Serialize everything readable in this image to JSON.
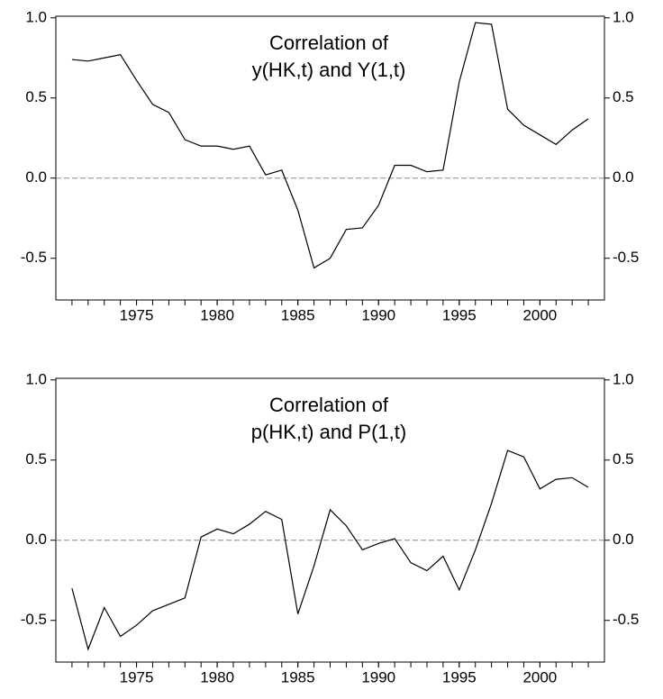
{
  "chart_data": [
    {
      "type": "line",
      "title": [
        "Correlation of",
        "y(HK,t) and Y(1,t)"
      ],
      "x": [
        1971,
        1972,
        1973,
        1974,
        1975,
        1976,
        1977,
        1978,
        1979,
        1980,
        1981,
        1982,
        1983,
        1984,
        1985,
        1986,
        1987,
        1988,
        1989,
        1990,
        1991,
        1992,
        1993,
        1994,
        1995,
        1996,
        1997,
        1998,
        1999,
        2000,
        2001,
        2002,
        2003
      ],
      "values": [
        0.74,
        0.73,
        0.75,
        0.77,
        0.61,
        0.46,
        0.41,
        0.24,
        0.2,
        0.2,
        0.18,
        0.2,
        0.02,
        0.05,
        -0.2,
        -0.56,
        -0.5,
        -0.32,
        -0.31,
        -0.17,
        0.08,
        0.08,
        0.04,
        0.05,
        0.6,
        0.97,
        0.96,
        0.43,
        0.33,
        0.27,
        0.21,
        0.3,
        0.37
      ],
      "color": "#000000",
      "xlim": [
        1970,
        2004
      ],
      "xticks": [
        1975,
        1980,
        1985,
        1990,
        1995,
        2000
      ],
      "ylim": [
        -0.76,
        1.01
      ],
      "yticks": [
        {
          "value": 1.0,
          "label": "1.0"
        },
        {
          "value": 0.5,
          "label": "0.5"
        },
        {
          "value": 0,
          "label": "0.0"
        },
        {
          "value": -0.5,
          "label": "-0.5"
        }
      ],
      "zero_line": true
    },
    {
      "type": "line",
      "title": [
        "Correlation of",
        "p(HK,t) and P(1,t)"
      ],
      "x": [
        1971,
        1972,
        1973,
        1974,
        1975,
        1976,
        1977,
        1978,
        1979,
        1980,
        1981,
        1982,
        1983,
        1984,
        1985,
        1986,
        1987,
        1988,
        1989,
        1990,
        1991,
        1992,
        1993,
        1994,
        1995,
        1996,
        1997,
        1998,
        1999,
        2000,
        2001,
        2002,
        2003
      ],
      "values": [
        -0.3,
        -0.68,
        -0.42,
        -0.6,
        -0.53,
        -0.44,
        -0.4,
        -0.36,
        0.02,
        0.07,
        0.04,
        0.1,
        0.18,
        0.13,
        -0.46,
        -0.16,
        0.19,
        0.09,
        -0.06,
        -0.02,
        0.01,
        -0.14,
        -0.19,
        -0.1,
        -0.31,
        -0.06,
        0.23,
        0.56,
        0.52,
        0.32,
        0.38,
        0.39,
        0.33
      ],
      "color": "#000000",
      "xlim": [
        1970,
        2004
      ],
      "xticks": [
        1975,
        1980,
        1985,
        1990,
        1995,
        2000
      ],
      "ylim": [
        -0.76,
        1.01
      ],
      "yticks": [
        {
          "value": 1.0,
          "label": "1.0"
        },
        {
          "value": 0.5,
          "label": "0.5"
        },
        {
          "value": 0,
          "label": "0.0"
        },
        {
          "value": -0.5,
          "label": "-0.5"
        }
      ],
      "zero_line": true
    }
  ]
}
